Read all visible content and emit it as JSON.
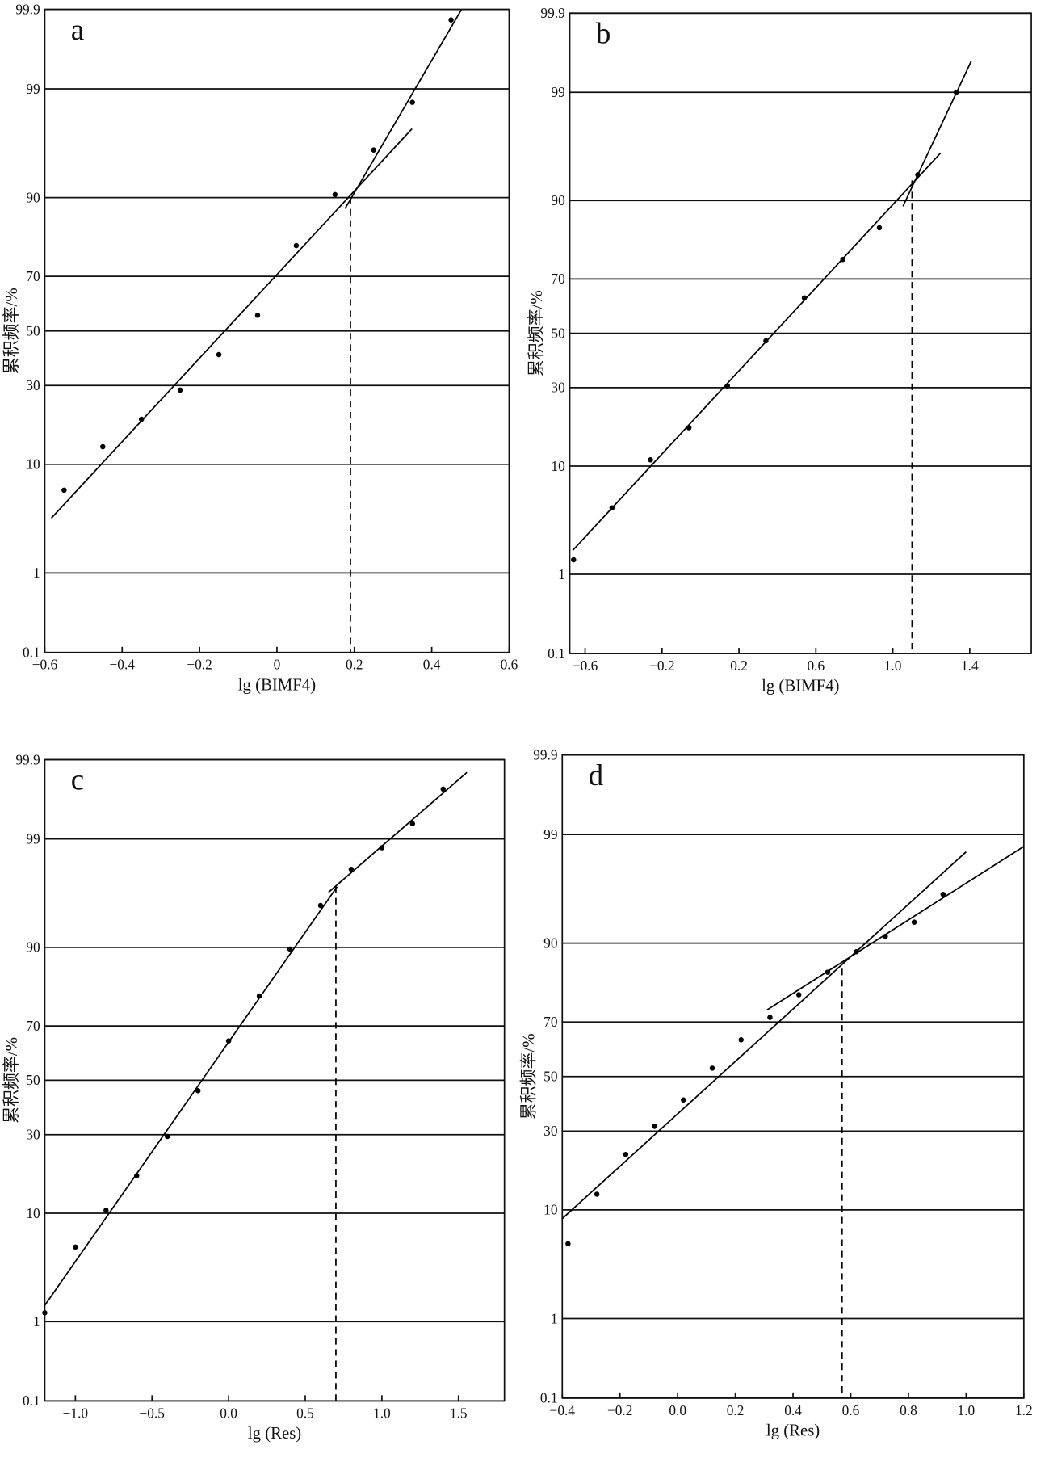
{
  "chart_data": [
    {
      "type": "scatter",
      "label": "a",
      "xlabel": "lg (BIMF4)",
      "ylabel": "累积频率/%",
      "color": "#000000",
      "xlim": [
        -0.6,
        0.6
      ],
      "xticks": [
        {
          "value": -0.6,
          "label": "−0.6"
        },
        {
          "value": -0.4,
          "label": "−0.4"
        },
        {
          "value": -0.2,
          "label": "−0.2"
        },
        0,
        0.2,
        0.4,
        0.6
      ],
      "ylim": [
        0.1,
        99.9
      ],
      "yticks": [
        0.1,
        1,
        10,
        30,
        50,
        70,
        90,
        99,
        99.9
      ],
      "yscale": "probability",
      "grid": true,
      "x": [
        -0.55,
        -0.45,
        -0.35,
        -0.25,
        -0.15,
        -0.05,
        0.05,
        0.15,
        0.25,
        0.35,
        0.45
      ],
      "values": [
        6.3,
        13.3,
        19.8,
        28.5,
        41,
        56,
        79.4,
        90.5,
        95.9,
        98.6,
        99.86
      ],
      "fit_lines": [
        {
          "x": [
            -0.583,
            0.349
          ],
          "values": [
            3.6,
            97.4
          ]
        },
        {
          "x": [
            0.176,
            0.477
          ],
          "values": [
            88,
            99.9
          ]
        }
      ],
      "break_line": {
        "x": [
          0.19,
          0.19
        ],
        "values": [
          90,
          0.1
        ]
      }
    },
    {
      "type": "scatter",
      "label": "b",
      "xlabel": "lg (BIMF4)",
      "ylabel": "累积频率/%",
      "color": "#000000",
      "xlim": [
        -0.68,
        1.72
      ],
      "xticks": [
        {
          "value": -0.6,
          "label": "−0.6"
        },
        {
          "value": -0.2,
          "label": "−0.2"
        },
        0.2,
        0.6,
        {
          "value": 1,
          "label": "1.0"
        },
        1.4
      ],
      "ylim": [
        0.1,
        99.9
      ],
      "yticks": [
        0.1,
        1,
        10,
        30,
        50,
        70,
        90,
        99,
        99.9
      ],
      "yscale": "probability",
      "grid": true,
      "x": [
        -0.66,
        -0.46,
        -0.26,
        -0.06,
        0.14,
        0.34,
        0.54,
        0.74,
        0.93,
        1.13,
        1.33
      ],
      "values": [
        1.44,
        4.6,
        11.1,
        18.1,
        30.6,
        47.1,
        63.4,
        76.2,
        84.6,
        93.7,
        99
      ],
      "fit_lines": [
        {
          "x": [
            -0.665,
            1.248
          ],
          "values": [
            1.8,
            95.9
          ]
        },
        {
          "x": [
            1.053,
            1.408
          ],
          "values": [
            89,
            99.57
          ]
        }
      ],
      "break_line": {
        "x": [
          1.1,
          1.1
        ],
        "values": [
          93,
          0.1
        ]
      }
    },
    {
      "type": "scatter",
      "label": "c",
      "xlabel": "lg (Res)",
      "ylabel": "累积频率/%",
      "color": "#000000",
      "xlim": [
        -1.2,
        1.8
      ],
      "xticks": [
        {
          "value": -1,
          "label": "−1.0"
        },
        {
          "value": -0.5,
          "label": "−0.5"
        },
        {
          "value": 0,
          "label": "0.0"
        },
        0.5,
        {
          "value": 1,
          "label": "1.0"
        },
        1.5
      ],
      "ylim": [
        0.1,
        99.9
      ],
      "yticks": [
        0.1,
        1,
        10,
        30,
        50,
        70,
        90,
        99,
        99.9
      ],
      "yscale": "probability",
      "grid": true,
      "x": [
        -1.2,
        -1.0,
        -0.8,
        -0.6,
        -0.4,
        -0.2,
        0,
        0.2,
        0.4,
        0.6,
        0.8,
        1.0,
        1.2,
        1.4
      ],
      "values": [
        1.25,
        5.4,
        10.5,
        17.9,
        29.4,
        46,
        64.8,
        79.2,
        89.7,
        95.4,
        97.9,
        98.75,
        99.33,
        99.75
      ],
      "fit_lines": [
        {
          "x": [
            -1.2,
            0.708
          ],
          "values": [
            1.5,
            96.9
          ]
        },
        {
          "x": [
            0.652,
            1.555
          ],
          "values": [
            96.5,
            99.85
          ]
        }
      ],
      "break_line": {
        "x": [
          0.7,
          0.7
        ],
        "values": [
          96.9,
          0.1
        ]
      }
    },
    {
      "type": "scatter",
      "label": "d",
      "xlabel": "lg (Res)",
      "ylabel": "累积频率/%",
      "color": "#000000",
      "xlim": [
        -0.4,
        1.2
      ],
      "xticks": [
        {
          "value": -0.4,
          "label": "−0.4"
        },
        {
          "value": -0.2,
          "label": "−0.2"
        },
        {
          "value": 0,
          "label": "0.0"
        },
        0.2,
        0.4,
        0.6,
        0.8,
        {
          "value": 1,
          "label": "1.0"
        },
        1.2
      ],
      "ylim": [
        0.1,
        99.9
      ],
      "yticks": [
        0.1,
        1,
        10,
        30,
        50,
        70,
        90,
        99,
        99.9
      ],
      "yscale": "probability",
      "grid": true,
      "x": [
        -0.38,
        -0.28,
        -0.18,
        -0.08,
        0.02,
        0.12,
        0.22,
        0.32,
        0.42,
        0.52,
        0.62,
        0.72,
        0.82,
        0.92
      ],
      "values": [
        5.4,
        12.9,
        22.7,
        31.6,
        41.1,
        53.2,
        63.8,
        71.5,
        78.4,
        84.2,
        88.5,
        91.1,
        93.1,
        96
      ],
      "fit_lines": [
        {
          "x": [
            -0.4,
            1.0
          ],
          "values": [
            8.6,
            98.46
          ]
        },
        {
          "x": [
            0.31,
            1.2
          ],
          "values": [
            73.9,
            98.65
          ]
        }
      ],
      "break_line": {
        "x": [
          0.57,
          0.57
        ],
        "values": [
          85,
          0.1
        ]
      }
    }
  ]
}
